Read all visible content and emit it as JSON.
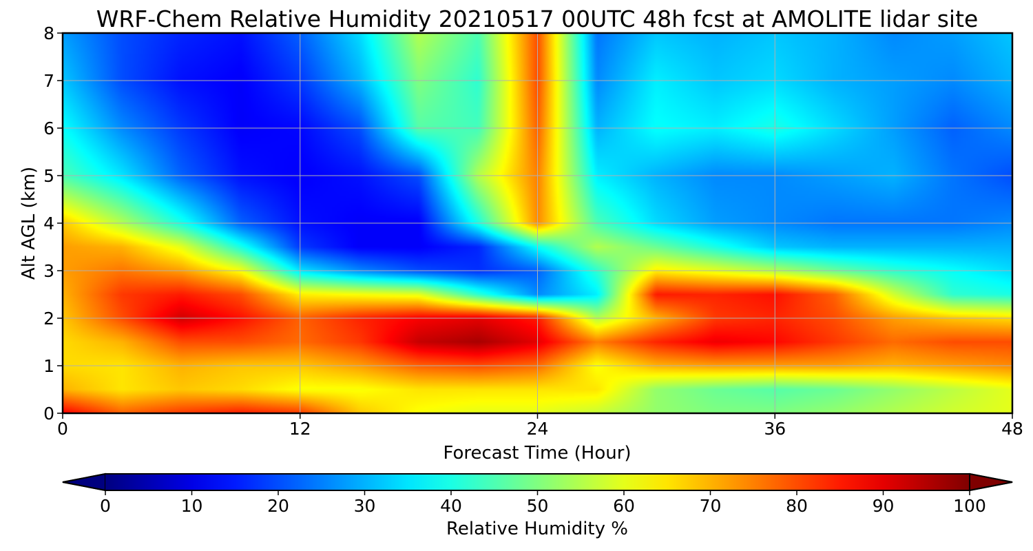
{
  "chart_data": {
    "type": "heatmap",
    "title": "WRF-Chem Relative Humidity 20210517 00UTC 48h fcst at AMOLITE lidar site",
    "xlabel": "Forecast Time (Hour)",
    "ylabel": "Alt AGL (km)",
    "xlim": [
      0,
      48
    ],
    "ylim": [
      0,
      8
    ],
    "xticks": [
      0,
      12,
      24,
      36,
      48
    ],
    "yticks": [
      0,
      1,
      2,
      3,
      4,
      5,
      6,
      7,
      8
    ],
    "grid": true,
    "colormap": "jet",
    "colorbar": {
      "label": "Relative Humidity %",
      "range": [
        0,
        100
      ],
      "ticks": [
        0,
        10,
        20,
        30,
        40,
        50,
        60,
        70,
        80,
        90,
        100
      ],
      "extend": "both",
      "orientation": "horizontal"
    },
    "x": [
      0,
      3,
      6,
      9,
      12,
      15,
      18,
      21,
      24,
      27,
      30,
      33,
      36,
      39,
      42,
      45,
      48
    ],
    "y": [
      0,
      0.5,
      1,
      1.5,
      2,
      2.5,
      3,
      3.5,
      4,
      5,
      6,
      7,
      8
    ],
    "z": [
      [
        88,
        78,
        82,
        85,
        82,
        68,
        62,
        60,
        60,
        57,
        52,
        50,
        50,
        52,
        55,
        58,
        60
      ],
      [
        70,
        65,
        68,
        66,
        62,
        62,
        65,
        65,
        65,
        65,
        52,
        48,
        46,
        48,
        52,
        56,
        60
      ],
      [
        66,
        65,
        70,
        68,
        68,
        72,
        78,
        80,
        77,
        62,
        70,
        72,
        72,
        72,
        70,
        72,
        74
      ],
      [
        66,
        70,
        80,
        80,
        77,
        82,
        93,
        96,
        90,
        75,
        84,
        89,
        87,
        82,
        77,
        80,
        80
      ],
      [
        68,
        80,
        92,
        86,
        78,
        84,
        88,
        90,
        85,
        55,
        70,
        82,
        84,
        80,
        72,
        68,
        66
      ],
      [
        70,
        82,
        85,
        80,
        64,
        62,
        60,
        42,
        26,
        36,
        85,
        84,
        86,
        78,
        58,
        42,
        40
      ],
      [
        72,
        76,
        72,
        62,
        35,
        26,
        20,
        17,
        22,
        42,
        64,
        60,
        55,
        48,
        42,
        38,
        34
      ],
      [
        72,
        70,
        60,
        40,
        18,
        12,
        12,
        16,
        38,
        55,
        48,
        40,
        32,
        30,
        30,
        30,
        30
      ],
      [
        68,
        55,
        40,
        22,
        14,
        12,
        12,
        40,
        74,
        45,
        34,
        28,
        26,
        24,
        24,
        24,
        26
      ],
      [
        45,
        35,
        22,
        14,
        12,
        14,
        20,
        55,
        75,
        36,
        30,
        26,
        26,
        28,
        30,
        24,
        20
      ],
      [
        38,
        26,
        18,
        12,
        13,
        20,
        46,
        44,
        78,
        30,
        38,
        36,
        40,
        34,
        28,
        22,
        26
      ],
      [
        32,
        20,
        14,
        12,
        18,
        30,
        50,
        42,
        80,
        26,
        36,
        32,
        34,
        30,
        28,
        26,
        30
      ],
      [
        28,
        20,
        16,
        14,
        22,
        34,
        55,
        45,
        80,
        24,
        32,
        30,
        32,
        30,
        26,
        28,
        32
      ]
    ]
  }
}
